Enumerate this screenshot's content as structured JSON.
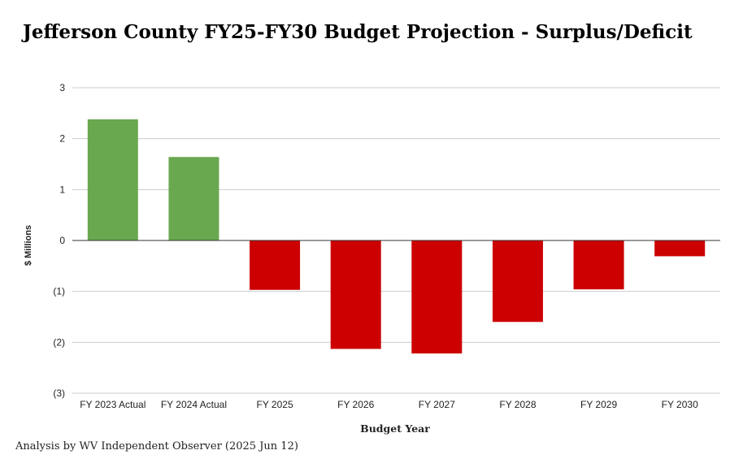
{
  "chart_data": {
    "type": "bar",
    "title": "Jefferson County FY25-FY30 Budget Projection - Surplus/Deficit",
    "xlabel": "Budget Year",
    "ylabel": "$ Millions",
    "categories": [
      "FY 2023 Actual",
      "FY 2024 Actual",
      "FY 2025",
      "FY 2026",
      "FY 2027",
      "FY 2028",
      "FY 2029",
      "FY 2030"
    ],
    "values": [
      2.38,
      1.64,
      -0.97,
      -2.13,
      -2.22,
      -1.6,
      -0.96,
      -0.31
    ],
    "ylim": [
      -3,
      3
    ],
    "yticks": [
      3,
      2,
      1,
      0,
      -1,
      -2,
      -3
    ],
    "ytick_labels": [
      "3",
      "2",
      "1",
      "0",
      "(1)",
      "(2)",
      "(3)"
    ],
    "positive_color": "#6aa84f",
    "negative_color": "#cc0000",
    "grid": true,
    "legend": "none"
  },
  "footnote": "Analysis by WV Independent Observer (2025 Jun 12)"
}
